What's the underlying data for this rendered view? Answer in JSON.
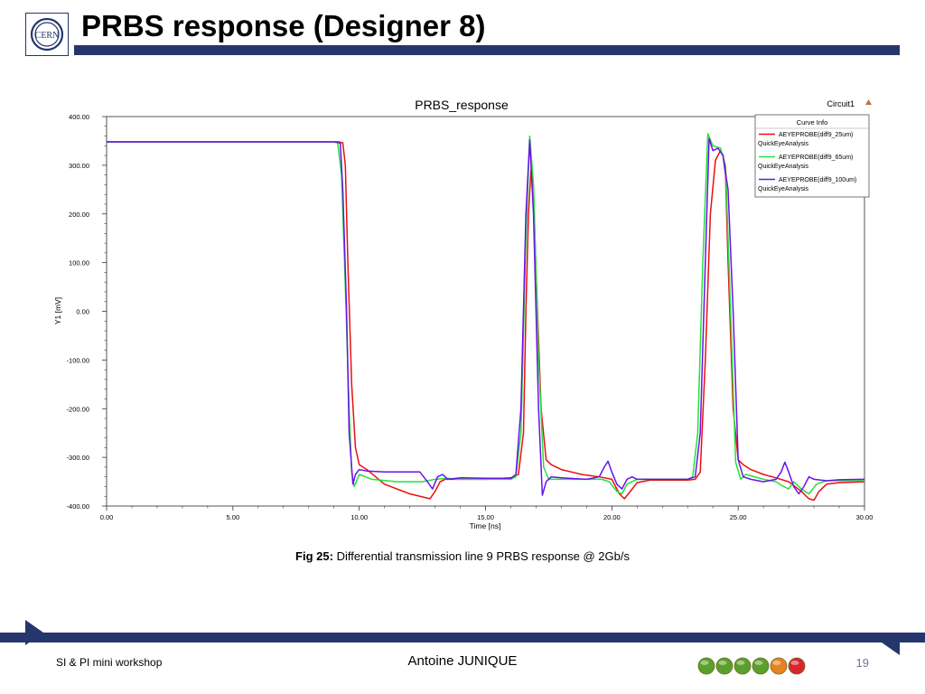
{
  "slide": {
    "title": "PRBS response (Designer 8)",
    "logo_text": "CERN",
    "caption_label": "Fig 25:",
    "caption_text": " Differential transmission line 9 PRBS response @ 2Gb/s",
    "footer_left": "SI & PI mini workshop",
    "footer_center": "Antoine JUNIQUE",
    "page_number": "19",
    "brand_color": "#24366b",
    "footer_dots": [
      "#5aa02c",
      "#5aa02c",
      "#5aa02c",
      "#5aa02c",
      "#e8821e",
      "#d9262a"
    ]
  },
  "chart_data": {
    "type": "line",
    "title": "PRBS_response",
    "subtitle": "Circuit1",
    "xlabel": "Time [ns]",
    "ylabel": "Y1 [mV]",
    "xlim": [
      0,
      30
    ],
    "ylim": [
      -400,
      400
    ],
    "xticks": [
      "0.00",
      "5.00",
      "10.00",
      "15.00",
      "20.00",
      "25.00",
      "30.00"
    ],
    "yticks": [
      "400.00",
      "300.00",
      "200.00",
      "100.00",
      "0.00",
      "-100.00",
      "-200.00",
      "-300.00",
      "-400.00"
    ],
    "grid": false,
    "legend": {
      "title": "Curve Info",
      "position": "top-right"
    },
    "series": [
      {
        "name": "AEYEPROBE(diff9_25um)",
        "sub": "QuickEyeAnalysis",
        "color": "#e8110f",
        "x": [
          0,
          9.2,
          9.35,
          9.45,
          9.55,
          9.7,
          9.85,
          10.0,
          10.3,
          11.0,
          12.0,
          12.8,
          13.0,
          13.2,
          13.4,
          14.0,
          15.0,
          16.0,
          16.3,
          16.5,
          16.6,
          16.7,
          16.8,
          16.9,
          17.0,
          17.2,
          17.4,
          17.6,
          18.0,
          18.8,
          19.5,
          20.0,
          20.3,
          20.5,
          20.7,
          21.0,
          21.5,
          22.5,
          23.0,
          23.3,
          23.5,
          23.7,
          23.9,
          24.1,
          24.3,
          24.4,
          24.5,
          24.6,
          24.8,
          25.0,
          25.2,
          25.5,
          26.0,
          26.5,
          27.0,
          27.5,
          27.8,
          28.0,
          28.2,
          28.5,
          29.0,
          30.0
        ],
        "y": [
          348,
          348,
          346,
          300,
          100,
          -150,
          -280,
          -315,
          -325,
          -355,
          -375,
          -385,
          -370,
          -350,
          -345,
          -345,
          -345,
          -342,
          -335,
          -250,
          0,
          200,
          290,
          250,
          80,
          -200,
          -305,
          -315,
          -325,
          -335,
          -340,
          -345,
          -375,
          -385,
          -372,
          -352,
          -347,
          -347,
          -347,
          -345,
          -330,
          -100,
          200,
          310,
          330,
          320,
          280,
          100,
          -200,
          -305,
          -315,
          -325,
          -335,
          -342,
          -350,
          -370,
          -385,
          -388,
          -370,
          -355,
          -352,
          -350
        ]
      },
      {
        "name": "AEYEPROBE(diff9_65um)",
        "sub": "QuickEyeAnalysis",
        "color": "#23e23a",
        "x": [
          0,
          9.0,
          9.15,
          9.3,
          9.45,
          9.6,
          9.7,
          9.8,
          10.0,
          10.5,
          11.5,
          12.5,
          13.0,
          13.5,
          14.0,
          15.0,
          16.0,
          16.2,
          16.4,
          16.6,
          16.75,
          16.9,
          17.1,
          17.3,
          17.5,
          18.0,
          19.0,
          19.6,
          19.9,
          20.2,
          20.4,
          20.6,
          21.0,
          22.0,
          23.0,
          23.2,
          23.4,
          23.6,
          23.8,
          24.0,
          24.3,
          24.5,
          24.7,
          24.9,
          25.1,
          25.3,
          26.0,
          26.5,
          26.8,
          27.0,
          27.2,
          27.5,
          27.8,
          28.1,
          28.5,
          29.0,
          30.0
        ],
        "y": [
          348,
          348,
          345,
          280,
          50,
          -200,
          -330,
          -360,
          -335,
          -345,
          -350,
          -350,
          -345,
          -343,
          -345,
          -345,
          -345,
          -340,
          -250,
          150,
          360,
          260,
          -100,
          -320,
          -345,
          -345,
          -345,
          -345,
          -350,
          -370,
          -375,
          -355,
          -345,
          -345,
          -345,
          -340,
          -250,
          100,
          365,
          340,
          335,
          300,
          0,
          -310,
          -345,
          -335,
          -345,
          -350,
          -360,
          -365,
          -350,
          -365,
          -375,
          -355,
          -348,
          -348,
          -348
        ]
      },
      {
        "name": "AEYEPROBE(diff9_100um)",
        "sub": "QuickEyeAnalysis",
        "color": "#6a12ea",
        "x": [
          0,
          9.1,
          9.25,
          9.35,
          9.5,
          9.6,
          9.75,
          9.85,
          10.0,
          10.3,
          11.0,
          12.0,
          12.4,
          12.7,
          12.9,
          13.1,
          13.3,
          13.5,
          14.0,
          15.0,
          16.0,
          16.2,
          16.4,
          16.6,
          16.75,
          16.9,
          17.1,
          17.25,
          17.4,
          17.6,
          18.0,
          19.0,
          19.5,
          19.7,
          19.85,
          20.0,
          20.2,
          20.4,
          20.6,
          20.8,
          21.0,
          22.0,
          23.0,
          23.3,
          23.5,
          23.7,
          23.85,
          24.0,
          24.2,
          24.4,
          24.6,
          24.8,
          25.0,
          25.2,
          25.5,
          26.0,
          26.5,
          26.7,
          26.85,
          27.0,
          27.2,
          27.4,
          27.6,
          27.8,
          28.0,
          28.5,
          29.0,
          30.0
        ],
        "y": [
          348,
          348,
          345,
          250,
          0,
          -250,
          -355,
          -335,
          -325,
          -328,
          -330,
          -330,
          -330,
          -350,
          -365,
          -340,
          -335,
          -345,
          -342,
          -343,
          -343,
          -335,
          -200,
          200,
          352,
          200,
          -200,
          -378,
          -350,
          -340,
          -342,
          -345,
          -340,
          -320,
          -308,
          -330,
          -355,
          -365,
          -345,
          -340,
          -345,
          -345,
          -345,
          -340,
          -250,
          100,
          355,
          330,
          335,
          320,
          250,
          0,
          -305,
          -340,
          -345,
          -350,
          -345,
          -330,
          -310,
          -330,
          -360,
          -375,
          -360,
          -340,
          -345,
          -348,
          -346,
          -345
        ]
      }
    ]
  }
}
